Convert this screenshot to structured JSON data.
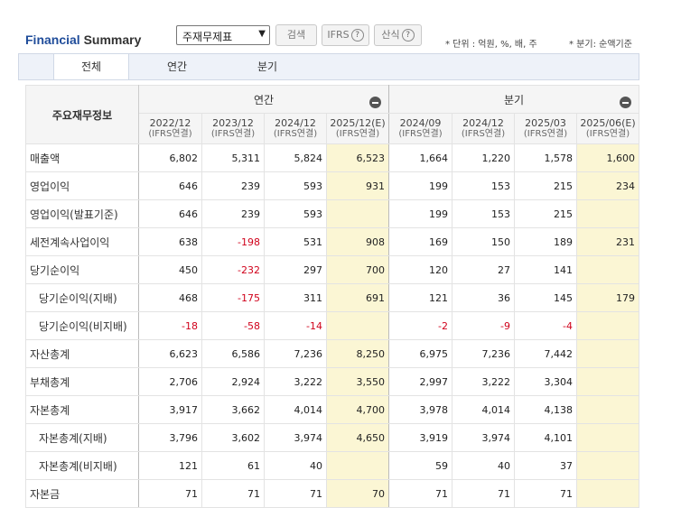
{
  "header": {
    "title_part1": "Financial",
    "title_part2": "Summary",
    "select_value": "주재무제표",
    "search_label": "검색",
    "ifrs_label": "IFRS",
    "formula_label": "산식",
    "unit_note": "* 단위 : 억원, %, 배, 주",
    "quarter_note": "* 분기: 순액기준"
  },
  "tabs": [
    "전체",
    "연간",
    "분기"
  ],
  "table": {
    "corner_label": "주요재무정보",
    "group_annual": "연간",
    "group_quarter": "분기",
    "columns": [
      {
        "period": "2022/12",
        "basis": "(IFRS연결)",
        "est": false
      },
      {
        "period": "2023/12",
        "basis": "(IFRS연결)",
        "est": false
      },
      {
        "period": "2024/12",
        "basis": "(IFRS연결)",
        "est": false
      },
      {
        "period": "2025/12(E)",
        "basis": "(IFRS연결)",
        "est": true
      },
      {
        "period": "2024/09",
        "basis": "(IFRS연결)",
        "est": false
      },
      {
        "period": "2024/12",
        "basis": "(IFRS연결)",
        "est": false
      },
      {
        "period": "2025/03",
        "basis": "(IFRS연결)",
        "est": false
      },
      {
        "period": "2025/06(E)",
        "basis": "(IFRS연결)",
        "est": true
      }
    ],
    "rows": [
      {
        "label": "매출액",
        "indent": false,
        "values": [
          "6,802",
          "5,311",
          "5,824",
          "6,523",
          "1,664",
          "1,220",
          "1,578",
          "1,600"
        ]
      },
      {
        "label": "영업이익",
        "indent": false,
        "values": [
          "646",
          "239",
          "593",
          "931",
          "199",
          "153",
          "215",
          "234"
        ]
      },
      {
        "label": "영업이익(발표기준)",
        "indent": false,
        "values": [
          "646",
          "239",
          "593",
          "",
          "199",
          "153",
          "215",
          ""
        ]
      },
      {
        "label": "세전계속사업이익",
        "indent": false,
        "values": [
          "638",
          "-198",
          "531",
          "908",
          "169",
          "150",
          "189",
          "231"
        ]
      },
      {
        "label": "당기순이익",
        "indent": false,
        "values": [
          "450",
          "-232",
          "297",
          "700",
          "120",
          "27",
          "141",
          ""
        ]
      },
      {
        "label": "당기순이익(지배)",
        "indent": true,
        "values": [
          "468",
          "-175",
          "311",
          "691",
          "121",
          "36",
          "145",
          "179"
        ]
      },
      {
        "label": "당기순이익(비지배)",
        "indent": true,
        "values": [
          "-18",
          "-58",
          "-14",
          "",
          "-2",
          "-9",
          "-4",
          ""
        ]
      },
      {
        "label": "자산총계",
        "indent": false,
        "values": [
          "6,623",
          "6,586",
          "7,236",
          "8,250",
          "6,975",
          "7,236",
          "7,442",
          ""
        ]
      },
      {
        "label": "부채총계",
        "indent": false,
        "values": [
          "2,706",
          "2,924",
          "3,222",
          "3,550",
          "2,997",
          "3,222",
          "3,304",
          ""
        ]
      },
      {
        "label": "자본총계",
        "indent": false,
        "values": [
          "3,917",
          "3,662",
          "4,014",
          "4,700",
          "3,978",
          "4,014",
          "4,138",
          ""
        ]
      },
      {
        "label": "자본총계(지배)",
        "indent": true,
        "values": [
          "3,796",
          "3,602",
          "3,974",
          "4,650",
          "3,919",
          "3,974",
          "4,101",
          ""
        ]
      },
      {
        "label": "자본총계(비지배)",
        "indent": true,
        "values": [
          "121",
          "61",
          "40",
          "",
          "59",
          "40",
          "37",
          ""
        ]
      },
      {
        "label": "자본금",
        "indent": false,
        "values": [
          "71",
          "71",
          "71",
          "70",
          "71",
          "71",
          "71",
          ""
        ]
      }
    ]
  }
}
